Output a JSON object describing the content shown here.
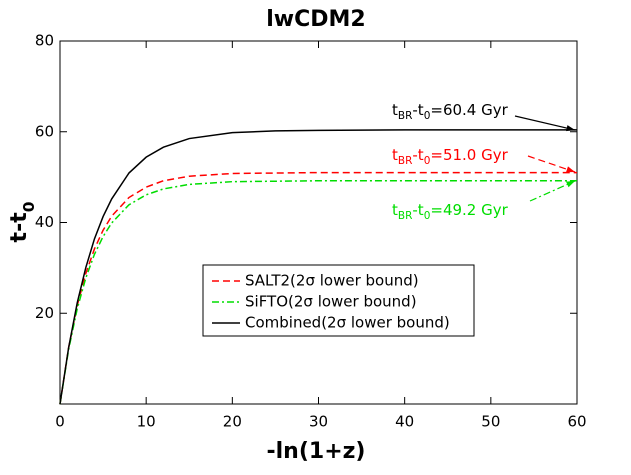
{
  "chart_data": {
    "type": "line",
    "title": "lwCDM2",
    "x_label": "-ln(1+z)",
    "y_label": [
      "t-t",
      "0"
    ],
    "xlim": [
      0,
      60
    ],
    "xticks": [
      0,
      10,
      20,
      30,
      40,
      50,
      60
    ],
    "ylim": [
      0,
      80
    ],
    "yticks": [
      20,
      40,
      60,
      80
    ],
    "x": [
      0,
      1,
      2,
      3,
      4,
      5,
      6,
      8,
      10,
      12,
      15,
      20,
      25,
      30,
      40,
      50,
      60
    ],
    "series": [
      {
        "name": "SALT2(2σ lower bound)",
        "color": "#ff0000",
        "dash": "dashed",
        "values": [
          0,
          12.4,
          21.7,
          28.8,
          34.2,
          38.3,
          41.4,
          45.5,
          47.8,
          49.2,
          50.2,
          50.8,
          50.9,
          51.0,
          51.0,
          51.0,
          51.0
        ]
      },
      {
        "name": "SiFTO(2σ lower bound)",
        "color": "#00dd00",
        "dash": "dashdot",
        "values": [
          0,
          12.0,
          21.0,
          27.8,
          33.0,
          36.9,
          39.9,
          43.9,
          46.1,
          47.4,
          48.4,
          49.0,
          49.1,
          49.2,
          49.2,
          49.2,
          49.2
        ]
      },
      {
        "name": "Combined(2σ lower bound)",
        "color": "#000000",
        "dash": "solid",
        "values": [
          0,
          12.4,
          22.3,
          30.1,
          36.4,
          41.3,
          45.2,
          50.9,
          54.4,
          56.6,
          58.5,
          59.8,
          60.2,
          60.3,
          60.4,
          60.4,
          60.4
        ]
      }
    ],
    "annotations": [
      {
        "parts": [
          "t",
          "BR",
          "-t",
          "0",
          "=60.4 Gyr"
        ],
        "color": "#000000",
        "dash": "solid"
      },
      {
        "parts": [
          "t",
          "BR",
          "-t",
          "0",
          "=51.0 Gyr"
        ],
        "color": "#ff0000",
        "dash": "dashed"
      },
      {
        "parts": [
          "t",
          "BR",
          "-t",
          "0",
          "=49.2 Gyr"
        ],
        "color": "#00dd00",
        "dash": "dashdot"
      }
    ]
  }
}
